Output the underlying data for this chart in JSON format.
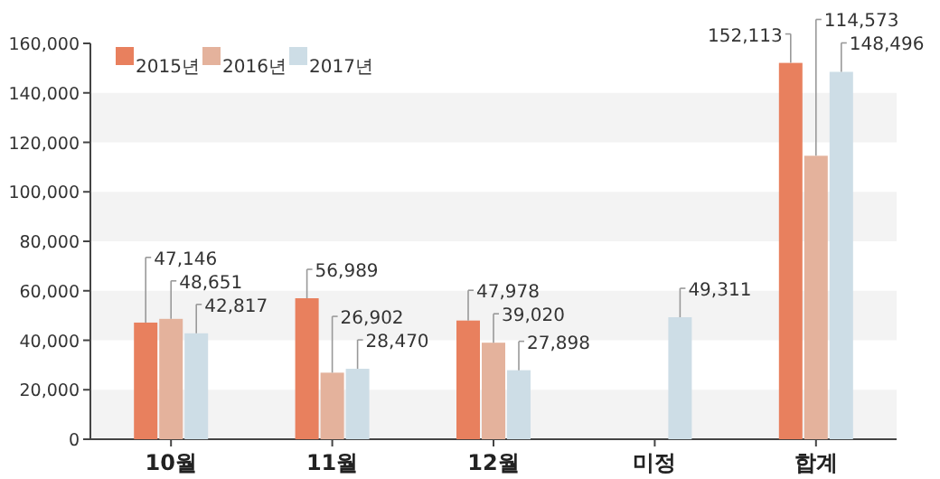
{
  "chart_data": {
    "type": "bar",
    "categories": [
      "10월",
      "11월",
      "12월",
      "미정",
      "합계"
    ],
    "series": [
      {
        "name": "2015년",
        "color": "#e8805e",
        "values": [
          47146,
          56989,
          47978,
          null,
          152113
        ],
        "value_labels": [
          "47,146",
          "56,989",
          "47,978",
          null,
          "152,113"
        ]
      },
      {
        "name": "2016년",
        "color": "#e4b29c",
        "values": [
          48651,
          26902,
          39020,
          null,
          114573
        ],
        "value_labels": [
          "48,651",
          "26,902",
          "39,020",
          null,
          "114,573"
        ]
      },
      {
        "name": "2017년",
        "color": "#cddde6",
        "values": [
          42817,
          28470,
          27898,
          49311,
          148496
        ],
        "value_labels": [
          "42,817",
          "28,470",
          "27,898",
          "49,311",
          "148,496"
        ]
      }
    ],
    "ylim": [
      0,
      160000
    ],
    "yticks": [
      {
        "value": 0,
        "label": "0"
      },
      {
        "value": 20000,
        "label": "20,000"
      },
      {
        "value": 40000,
        "label": "40,000"
      },
      {
        "value": 60000,
        "label": "60,000"
      },
      {
        "value": 80000,
        "label": "80,000"
      },
      {
        "value": 100000,
        "label": "100,000"
      },
      {
        "value": 120000,
        "label": "120,000"
      },
      {
        "value": 140000,
        "label": "140,000"
      },
      {
        "value": 160000,
        "label": "160,000"
      }
    ],
    "bands": [
      {
        "axis": "y",
        "from": 0,
        "to": 20000,
        "color": "#f3f3f3"
      },
      {
        "axis": "y",
        "from": 40000,
        "to": 60000,
        "color": "#f3f3f3"
      },
      {
        "axis": "y",
        "from": 80000,
        "to": 100000,
        "color": "#f3f3f3"
      },
      {
        "axis": "y",
        "from": 120000,
        "to": 140000,
        "color": "#f3f3f3"
      }
    ],
    "legend": "top left"
  }
}
